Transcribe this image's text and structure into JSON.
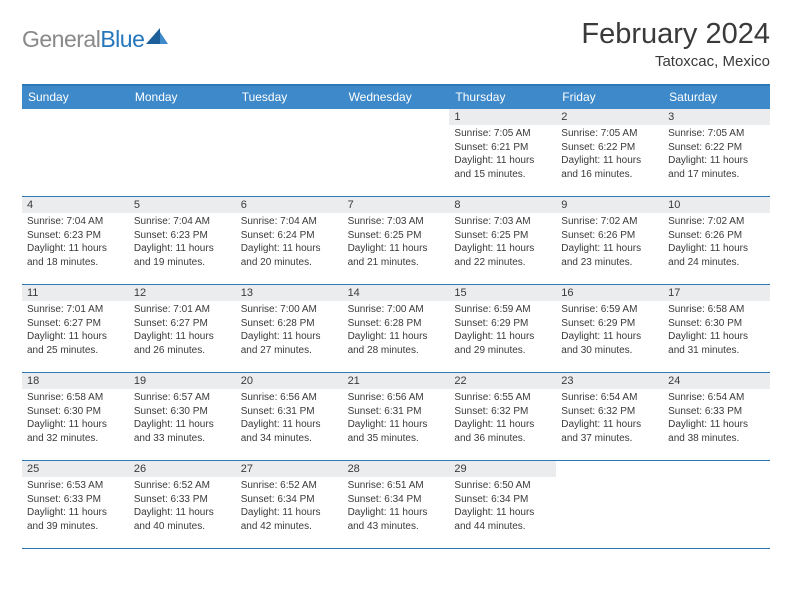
{
  "logo": {
    "text_gray": "General",
    "text_blue": "Blue"
  },
  "title": "February 2024",
  "location": "Tatoxcac, Mexico",
  "colors": {
    "header_bg": "#3d89c9",
    "header_border": "#2f78b8",
    "date_bg": "#ebeced",
    "text": "#3a3a3a",
    "logo_gray": "#89898b",
    "logo_blue": "#2477bb"
  },
  "day_names": [
    "Sunday",
    "Monday",
    "Tuesday",
    "Wednesday",
    "Thursday",
    "Friday",
    "Saturday"
  ],
  "weeks": [
    [
      null,
      null,
      null,
      null,
      {
        "d": "1",
        "sr": "7:05 AM",
        "ss": "6:21 PM",
        "dl": "11 hours and 15 minutes."
      },
      {
        "d": "2",
        "sr": "7:05 AM",
        "ss": "6:22 PM",
        "dl": "11 hours and 16 minutes."
      },
      {
        "d": "3",
        "sr": "7:05 AM",
        "ss": "6:22 PM",
        "dl": "11 hours and 17 minutes."
      }
    ],
    [
      {
        "d": "4",
        "sr": "7:04 AM",
        "ss": "6:23 PM",
        "dl": "11 hours and 18 minutes."
      },
      {
        "d": "5",
        "sr": "7:04 AM",
        "ss": "6:23 PM",
        "dl": "11 hours and 19 minutes."
      },
      {
        "d": "6",
        "sr": "7:04 AM",
        "ss": "6:24 PM",
        "dl": "11 hours and 20 minutes."
      },
      {
        "d": "7",
        "sr": "7:03 AM",
        "ss": "6:25 PM",
        "dl": "11 hours and 21 minutes."
      },
      {
        "d": "8",
        "sr": "7:03 AM",
        "ss": "6:25 PM",
        "dl": "11 hours and 22 minutes."
      },
      {
        "d": "9",
        "sr": "7:02 AM",
        "ss": "6:26 PM",
        "dl": "11 hours and 23 minutes."
      },
      {
        "d": "10",
        "sr": "7:02 AM",
        "ss": "6:26 PM",
        "dl": "11 hours and 24 minutes."
      }
    ],
    [
      {
        "d": "11",
        "sr": "7:01 AM",
        "ss": "6:27 PM",
        "dl": "11 hours and 25 minutes."
      },
      {
        "d": "12",
        "sr": "7:01 AM",
        "ss": "6:27 PM",
        "dl": "11 hours and 26 minutes."
      },
      {
        "d": "13",
        "sr": "7:00 AM",
        "ss": "6:28 PM",
        "dl": "11 hours and 27 minutes."
      },
      {
        "d": "14",
        "sr": "7:00 AM",
        "ss": "6:28 PM",
        "dl": "11 hours and 28 minutes."
      },
      {
        "d": "15",
        "sr": "6:59 AM",
        "ss": "6:29 PM",
        "dl": "11 hours and 29 minutes."
      },
      {
        "d": "16",
        "sr": "6:59 AM",
        "ss": "6:29 PM",
        "dl": "11 hours and 30 minutes."
      },
      {
        "d": "17",
        "sr": "6:58 AM",
        "ss": "6:30 PM",
        "dl": "11 hours and 31 minutes."
      }
    ],
    [
      {
        "d": "18",
        "sr": "6:58 AM",
        "ss": "6:30 PM",
        "dl": "11 hours and 32 minutes."
      },
      {
        "d": "19",
        "sr": "6:57 AM",
        "ss": "6:30 PM",
        "dl": "11 hours and 33 minutes."
      },
      {
        "d": "20",
        "sr": "6:56 AM",
        "ss": "6:31 PM",
        "dl": "11 hours and 34 minutes."
      },
      {
        "d": "21",
        "sr": "6:56 AM",
        "ss": "6:31 PM",
        "dl": "11 hours and 35 minutes."
      },
      {
        "d": "22",
        "sr": "6:55 AM",
        "ss": "6:32 PM",
        "dl": "11 hours and 36 minutes."
      },
      {
        "d": "23",
        "sr": "6:54 AM",
        "ss": "6:32 PM",
        "dl": "11 hours and 37 minutes."
      },
      {
        "d": "24",
        "sr": "6:54 AM",
        "ss": "6:33 PM",
        "dl": "11 hours and 38 minutes."
      }
    ],
    [
      {
        "d": "25",
        "sr": "6:53 AM",
        "ss": "6:33 PM",
        "dl": "11 hours and 39 minutes."
      },
      {
        "d": "26",
        "sr": "6:52 AM",
        "ss": "6:33 PM",
        "dl": "11 hours and 40 minutes."
      },
      {
        "d": "27",
        "sr": "6:52 AM",
        "ss": "6:34 PM",
        "dl": "11 hours and 42 minutes."
      },
      {
        "d": "28",
        "sr": "6:51 AM",
        "ss": "6:34 PM",
        "dl": "11 hours and 43 minutes."
      },
      {
        "d": "29",
        "sr": "6:50 AM",
        "ss": "6:34 PM",
        "dl": "11 hours and 44 minutes."
      },
      null,
      null
    ]
  ],
  "labels": {
    "sunrise": "Sunrise: ",
    "sunset": "Sunset: ",
    "daylight": "Daylight: "
  }
}
